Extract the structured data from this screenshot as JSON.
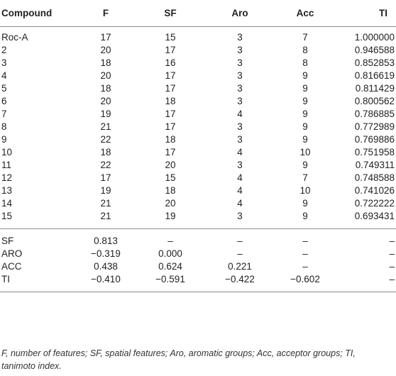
{
  "headers": [
    "Compound",
    "F",
    "SF",
    "Aro",
    "Acc",
    "TI"
  ],
  "compounds": [
    [
      "Roc-A",
      "17",
      "15",
      "3",
      "7",
      "1.000000"
    ],
    [
      "2",
      "20",
      "17",
      "3",
      "8",
      "0.946588"
    ],
    [
      "3",
      "18",
      "16",
      "3",
      "8",
      "0.852853"
    ],
    [
      "4",
      "20",
      "17",
      "3",
      "9",
      "0.816619"
    ],
    [
      "5",
      "18",
      "17",
      "3",
      "9",
      "0.811429"
    ],
    [
      "6",
      "20",
      "18",
      "3",
      "9",
      "0.800562"
    ],
    [
      "7",
      "19",
      "17",
      "4",
      "9",
      "0.786885"
    ],
    [
      "8",
      "21",
      "17",
      "3",
      "9",
      "0.772989"
    ],
    [
      "9",
      "22",
      "18",
      "3",
      "9",
      "0.769886"
    ],
    [
      "10",
      "18",
      "17",
      "4",
      "10",
      "0.751958"
    ],
    [
      "11",
      "22",
      "20",
      "3",
      "9",
      "0.749311"
    ],
    [
      "12",
      "17",
      "15",
      "4",
      "7",
      "0.748588"
    ],
    [
      "13",
      "19",
      "18",
      "4",
      "10",
      "0.741026"
    ],
    [
      "14",
      "21",
      "20",
      "4",
      "9",
      "0.722222"
    ],
    [
      "15",
      "21",
      "19",
      "3",
      "9",
      "0.693431"
    ]
  ],
  "correlations": [
    [
      "SF",
      "0.813",
      "–",
      "–",
      "–",
      "–"
    ],
    [
      "ARO",
      "−0.319",
      "0.000",
      "–",
      "–",
      "–"
    ],
    [
      "ACC",
      "0.438",
      "0.624",
      "0.221",
      "–",
      "–"
    ],
    [
      "TI",
      "−0.410",
      "−0.591",
      "−0.422",
      "−0.602",
      "–"
    ]
  ],
  "footnote": "F, number of features; SF, spatial features; Aro, aromatic groups; Acc, acceptor groups; TI, tanimoto index."
}
